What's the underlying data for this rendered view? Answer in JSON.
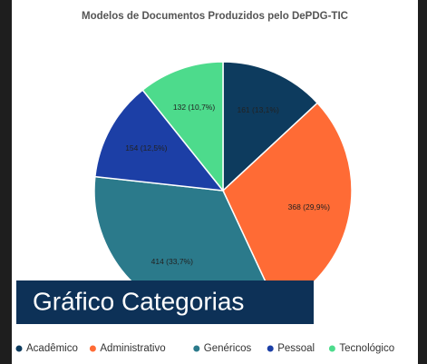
{
  "chart_data": {
    "type": "pie",
    "title": "Modelos de Documentos Produzidos pelo DePDG-TIC",
    "banner": "Gráfico Categorias",
    "categories": [
      "Acadêmico",
      "Administrativo",
      "Genéricos",
      "Pessoal",
      "Tecnológico"
    ],
    "values": [
      161,
      368,
      414,
      154,
      132
    ],
    "value_labels": [
      "161 (13,1%)",
      "368 (29,9%)",
      "414 (33,7%)",
      "154 (12,5%)",
      "132 (10,7%)"
    ],
    "colors": [
      "#0d3b5e",
      "#ff6b35",
      "#2b7a8b",
      "#1c3fa6",
      "#4ddb8c"
    ],
    "legend": "bottom"
  }
}
